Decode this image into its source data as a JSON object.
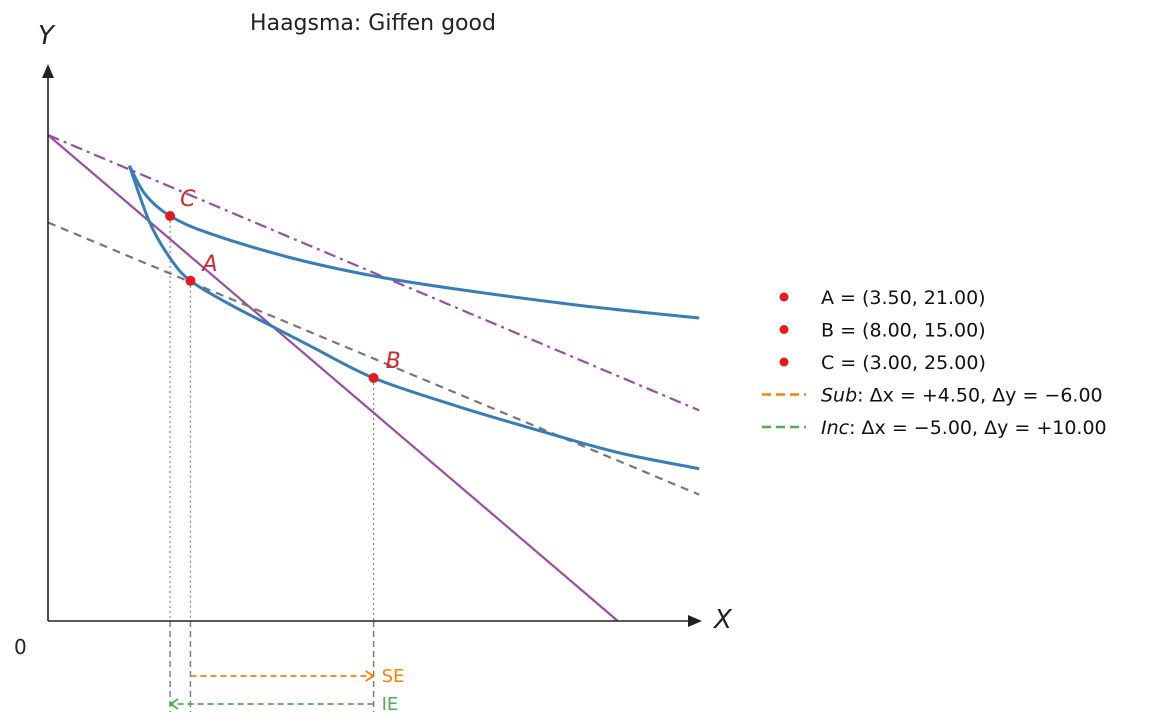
{
  "chart_data": {
    "type": "line",
    "title": "Haagsma: Giffen good",
    "xlabel": "X",
    "ylabel": "Y",
    "origin_label": "0",
    "xlim": [
      0,
      18
    ],
    "ylim": [
      0,
      30
    ],
    "grid": false,
    "legend_position": "right",
    "points": [
      {
        "name": "A",
        "x": 3.5,
        "y": 21.0,
        "legend": "A = (3.50, 21.00)"
      },
      {
        "name": "B",
        "x": 8.0,
        "y": 15.0,
        "legend": "B = (8.00, 15.00)"
      },
      {
        "name": "C",
        "x": 3.0,
        "y": 25.0,
        "legend": "C = (3.00, 25.00)"
      }
    ],
    "budget_lines": [
      {
        "style": "solid",
        "x": [
          0,
          14
        ],
        "y": [
          30,
          0
        ],
        "color": "#984ea3"
      },
      {
        "style": "dash-dot",
        "x": [
          0,
          16
        ],
        "y": [
          30,
          13.0
        ],
        "color": "#984ea3"
      },
      {
        "style": "dashed",
        "x": [
          0,
          16
        ],
        "y": [
          24.6,
          7.8
        ],
        "color": "#777777"
      }
    ],
    "indifference_curves": [
      {
        "color": "#377eb8",
        "x": [
          2.0,
          2.4,
          3.0,
          4.0,
          6.0,
          8.0,
          10.0,
          13.0,
          16.0
        ],
        "y": [
          28.1,
          26.3,
          25.0,
          23.9,
          22.4,
          21.3,
          20.5,
          19.5,
          18.7
        ]
      },
      {
        "color": "#377eb8",
        "x": [
          2.0,
          2.5,
          3.0,
          3.5,
          4.5,
          5.5,
          6.5,
          8.0,
          10.0,
          12.0,
          14.0,
          16.0
        ],
        "y": [
          28.1,
          24.6,
          22.4,
          21.0,
          19.5,
          18.2,
          16.9,
          15.0,
          13.3,
          11.8,
          10.4,
          9.4
        ]
      }
    ],
    "effects": [
      {
        "label": "SE",
        "legend_name": "Sub",
        "legend_rest": ":  Δx = +4.50,  Δy = −6.00",
        "from_x": 3.5,
        "to_x": 8.0,
        "color": "#ff7f00"
      },
      {
        "label": "IE",
        "legend_name": "Inc",
        "legend_rest": ":  Δx = −5.00,  Δy = +10.00",
        "from_x": 8.0,
        "to_x": 3.0,
        "color": "#4daf4a"
      }
    ],
    "colors": {
      "points": "#e41a1c",
      "guides": "#888888",
      "axes": "#222222"
    }
  }
}
